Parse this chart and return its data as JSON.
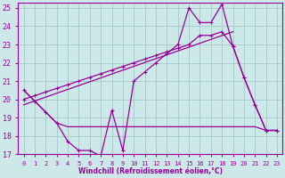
{
  "xlabel": "Windchill (Refroidissement éolien,°C)",
  "bg_color": "#cce8e8",
  "grid_color": "#aacccc",
  "line_color": "#990099",
  "xlim": [
    -0.5,
    23.5
  ],
  "ylim": [
    17,
    25.3
  ],
  "yticks": [
    17,
    18,
    19,
    20,
    21,
    22,
    23,
    24,
    25
  ],
  "xticks": [
    0,
    1,
    2,
    3,
    4,
    5,
    6,
    7,
    8,
    9,
    10,
    11,
    12,
    13,
    14,
    15,
    16,
    17,
    18,
    19,
    20,
    21,
    22,
    23
  ],
  "series1_x": [
    0,
    1,
    2,
    3,
    4,
    5,
    6,
    7,
    8,
    9,
    10,
    11,
    12,
    13,
    14,
    15,
    16,
    17,
    18,
    19,
    20,
    21,
    22,
    23
  ],
  "series1_y": [
    20.5,
    19.9,
    19.3,
    18.7,
    17.7,
    17.2,
    17.2,
    16.9,
    19.4,
    17.2,
    21.0,
    21.5,
    22.0,
    22.5,
    23.0,
    25.0,
    24.2,
    24.2,
    25.2,
    22.9,
    21.2,
    19.7,
    18.3,
    18.3
  ],
  "series2_x": [
    0,
    2,
    3,
    4,
    5,
    6,
    7,
    8,
    9,
    10,
    11,
    12,
    13,
    14,
    15,
    16,
    17,
    18,
    19,
    20,
    21,
    22,
    23
  ],
  "series2_y": [
    20.5,
    19.3,
    18.7,
    18.5,
    18.5,
    18.5,
    18.5,
    18.5,
    18.5,
    18.5,
    18.5,
    18.5,
    18.5,
    18.5,
    18.5,
    18.5,
    18.5,
    18.5,
    18.5,
    18.5,
    18.5,
    18.3,
    18.3
  ],
  "series3_x": [
    0,
    1,
    2,
    3,
    4,
    5,
    6,
    7,
    8,
    9,
    10,
    11,
    12,
    13,
    14,
    15,
    16,
    17,
    18,
    19,
    20,
    21,
    22,
    23
  ],
  "series3_y": [
    20.0,
    20.2,
    20.4,
    20.6,
    20.8,
    21.0,
    21.2,
    21.4,
    21.6,
    21.8,
    22.0,
    22.2,
    22.4,
    22.6,
    22.8,
    23.0,
    23.5,
    23.5,
    23.7,
    22.9,
    21.2,
    19.7,
    18.3,
    18.3
  ],
  "series4_x": [
    0,
    19
  ],
  "series4_y": [
    19.7,
    23.7
  ]
}
